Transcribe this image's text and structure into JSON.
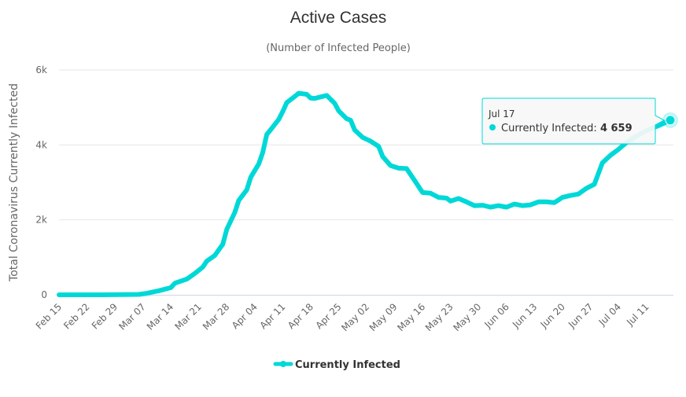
{
  "chart_data": {
    "type": "line",
    "title": "Active Cases",
    "subtitle": "(Number of Infected People)",
    "ylabel": "Total Coronavirus Currently Infected",
    "xlabel": "",
    "ylim": [
      0,
      6000
    ],
    "y_ticks": [
      {
        "value": 0,
        "label": "0"
      },
      {
        "value": 2000,
        "label": "2k"
      },
      {
        "value": 4000,
        "label": "4k"
      },
      {
        "value": 6000,
        "label": "6k"
      }
    ],
    "x_start": "Feb 15",
    "x_days_range": [
      0,
      153
    ],
    "x_ticks": [
      {
        "day": 0,
        "label": "Feb 15"
      },
      {
        "day": 7,
        "label": "Feb 22"
      },
      {
        "day": 14,
        "label": "Feb 29"
      },
      {
        "day": 21,
        "label": "Mar 07"
      },
      {
        "day": 28,
        "label": "Mar 14"
      },
      {
        "day": 35,
        "label": "Mar 21"
      },
      {
        "day": 42,
        "label": "Mar 28"
      },
      {
        "day": 49,
        "label": "Apr 04"
      },
      {
        "day": 56,
        "label": "Apr 11"
      },
      {
        "day": 63,
        "label": "Apr 18"
      },
      {
        "day": 70,
        "label": "Apr 25"
      },
      {
        "day": 77,
        "label": "May 02"
      },
      {
        "day": 84,
        "label": "May 09"
      },
      {
        "day": 91,
        "label": "May 16"
      },
      {
        "day": 98,
        "label": "May 23"
      },
      {
        "day": 105,
        "label": "May 30"
      },
      {
        "day": 112,
        "label": "Jun 06"
      },
      {
        "day": 119,
        "label": "Jun 13"
      },
      {
        "day": 126,
        "label": "Jun 20"
      },
      {
        "day": 133,
        "label": "Jun 27"
      },
      {
        "day": 140,
        "label": "Jul 04"
      },
      {
        "day": 147,
        "label": "Jul 11"
      }
    ],
    "grid": true,
    "legend_position": "bottom-center",
    "series": [
      {
        "name": "Currently Infected",
        "color": "#00d8d8",
        "days": [
          0,
          10,
          20,
          22,
          25,
          28,
          29,
          32,
          34,
          36,
          37,
          39,
          41,
          42,
          44,
          45,
          47,
          48,
          50,
          51,
          52,
          53,
          55,
          56,
          57,
          59,
          60,
          62,
          63,
          64,
          67,
          69,
          70,
          72,
          73,
          74,
          76,
          78,
          80,
          81,
          83,
          85,
          87,
          89,
          91,
          93,
          95,
          97,
          98,
          100,
          102,
          104,
          106,
          108,
          110,
          112,
          114,
          116,
          118,
          120,
          122,
          124,
          126,
          128,
          130,
          132,
          134,
          136,
          138,
          140,
          142,
          144,
          147,
          150,
          153
        ],
        "values": [
          0,
          0,
          10,
          40,
          110,
          190,
          310,
          420,
          570,
          740,
          900,
          1050,
          1350,
          1750,
          2200,
          2520,
          2800,
          3140,
          3490,
          3800,
          4280,
          4410,
          4680,
          4890,
          5130,
          5290,
          5380,
          5350,
          5250,
          5240,
          5320,
          5110,
          4910,
          4700,
          4660,
          4400,
          4200,
          4100,
          3960,
          3690,
          3450,
          3380,
          3370,
          3050,
          2730,
          2710,
          2600,
          2580,
          2500,
          2570,
          2480,
          2380,
          2390,
          2340,
          2380,
          2340,
          2420,
          2380,
          2400,
          2480,
          2480,
          2460,
          2600,
          2650,
          2690,
          2840,
          2950,
          3520,
          3720,
          3880,
          4060,
          4200,
          4380,
          4510,
          4659
        ]
      }
    ],
    "tooltip": {
      "date": "Jul 17",
      "series_name": "Currently Infected",
      "separator": ":",
      "value_label": "4 659",
      "value": 4659,
      "day": 153
    },
    "legend": [
      {
        "label": "Currently Infected",
        "color": "#00d8d8"
      }
    ]
  }
}
